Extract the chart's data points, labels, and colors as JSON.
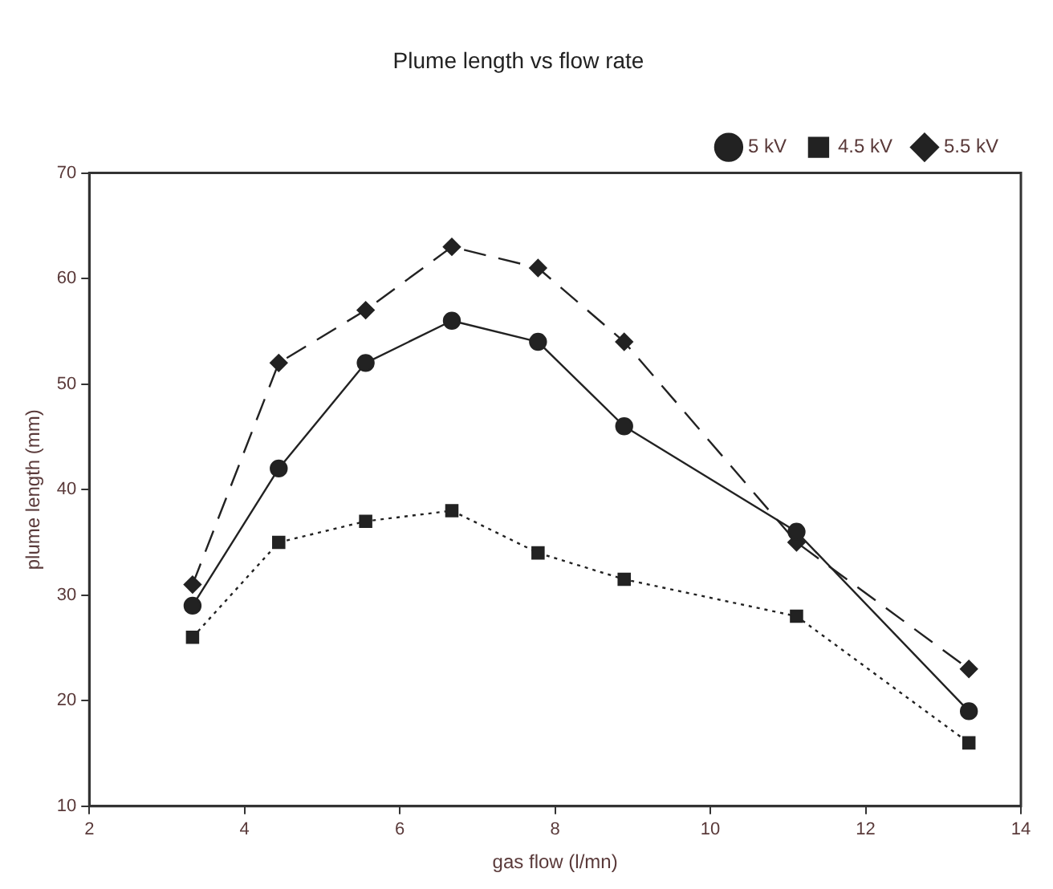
{
  "chart_data": {
    "type": "line",
    "title": "Plume length vs flow rate",
    "xlabel": "gas flow (l/mn)",
    "ylabel": "plume length (mm)",
    "x": [
      3.33,
      4.44,
      5.56,
      6.67,
      7.78,
      8.89,
      11.11,
      13.33
    ],
    "series": [
      {
        "name": "5 kV",
        "color": "#222222",
        "marker": "circle",
        "line_style": "solid",
        "values": [
          29,
          42,
          52,
          56,
          54,
          46,
          36,
          19
        ]
      },
      {
        "name": "4.5 kV",
        "color": "#222222",
        "marker": "square",
        "line_style": "dotted",
        "values": [
          26,
          35,
          37,
          38,
          34,
          31.5,
          28,
          16
        ]
      },
      {
        "name": "5.5 kV",
        "color": "#222222",
        "marker": "diamond",
        "line_style": "dashed",
        "values": [
          31,
          52,
          57,
          63,
          61,
          54,
          35,
          23
        ]
      }
    ],
    "xlim": [
      2,
      14
    ],
    "xticks": [
      2,
      4,
      6,
      8,
      10,
      12,
      14
    ],
    "ylim": [
      10,
      70
    ],
    "yticks": [
      10,
      20,
      30,
      40,
      50,
      60,
      70
    ],
    "grid": false,
    "legend": "top right"
  }
}
